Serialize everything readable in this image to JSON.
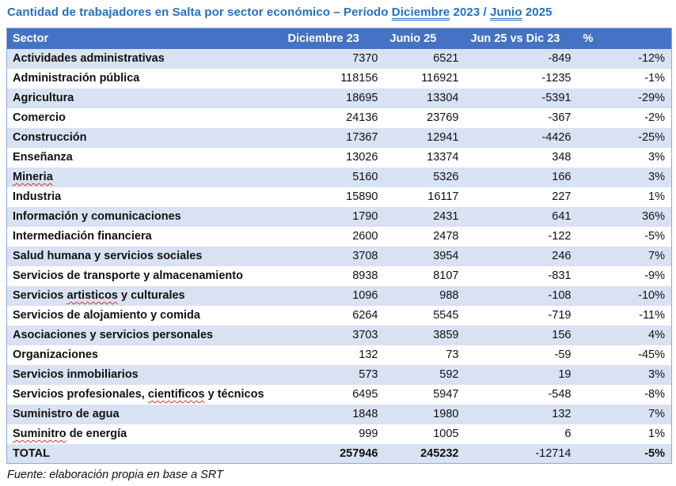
{
  "title": {
    "full": "Cantidad de trabajadores en Salta por sector económico – Período Diciembre 2023 / Junio 2025",
    "parts": [
      {
        "text": "Cantidad de trabajadores en Salta por sector económico – Período "
      },
      {
        "text": "Diciembre",
        "underline": true
      },
      {
        "text": " 2023 / "
      },
      {
        "text": "Junio",
        "underline": true
      },
      {
        "text": " 2025"
      }
    ]
  },
  "table": {
    "headers": {
      "sector": "Sector",
      "dic": "Diciembre 23",
      "jun": "Junio 25",
      "diff": "Jun 25 vs Dic 23",
      "pct": "%"
    },
    "rows": [
      {
        "sector": "Actividades administrativas",
        "dic": "7370",
        "jun": "6521",
        "diff": "-849",
        "pct": "-12%"
      },
      {
        "sector": "Administración pública",
        "dic": "118156",
        "jun": "116921",
        "diff": "-1235",
        "pct": "-1%"
      },
      {
        "sector": "Agricultura",
        "dic": "18695",
        "jun": "13304",
        "diff": "-5391",
        "pct": "-29%"
      },
      {
        "sector": "Comercio",
        "dic": "24136",
        "jun": "23769",
        "diff": "-367",
        "pct": "-2%"
      },
      {
        "sector": "Construcción",
        "dic": "17367",
        "jun": "12941",
        "diff": "-4426",
        "pct": "-25%"
      },
      {
        "sector": "Enseñanza",
        "dic": "13026",
        "jun": "13374",
        "diff": "348",
        "pct": "3%"
      },
      {
        "sector": "Mineria",
        "misspell": "Mineria",
        "dic": "5160",
        "jun": "5326",
        "diff": "166",
        "pct": "3%"
      },
      {
        "sector": "Industria",
        "dic": "15890",
        "jun": "16117",
        "diff": "227",
        "pct": "1%"
      },
      {
        "sector": "Información y comunicaciones",
        "dic": "1790",
        "jun": "2431",
        "diff": "641",
        "pct": "36%"
      },
      {
        "sector": "Intermediación financiera",
        "dic": "2600",
        "jun": "2478",
        "diff": "-122",
        "pct": "-5%"
      },
      {
        "sector": "Salud humana y servicios sociales",
        "dic": "3708",
        "jun": "3954",
        "diff": "246",
        "pct": "7%"
      },
      {
        "sector": "Servicios de transporte y almacenamiento",
        "dic": "8938",
        "jun": "8107",
        "diff": "-831",
        "pct": "-9%"
      },
      {
        "sector": "Servicios artisticos y culturales",
        "misspell": "artisticos",
        "dic": "1096",
        "jun": "988",
        "diff": "-108",
        "pct": "-10%"
      },
      {
        "sector": "Servicios de alojamiento y comida",
        "dic": "6264",
        "jun": "5545",
        "diff": "-719",
        "pct": "-11%"
      },
      {
        "sector": "Asociaciones y servicios personales",
        "dic": "3703",
        "jun": "3859",
        "diff": "156",
        "pct": "4%"
      },
      {
        "sector": "Organizaciones",
        "dic": "132",
        "jun": "73",
        "diff": "-59",
        "pct": "-45%"
      },
      {
        "sector": "Servicios inmobiliarios",
        "dic": "573",
        "jun": "592",
        "diff": "19",
        "pct": "3%"
      },
      {
        "sector": "Servicios profesionales, cientificos y técnicos",
        "misspell": "cientificos",
        "dic": "6495",
        "jun": "5947",
        "diff": "-548",
        "pct": "-8%"
      },
      {
        "sector": "Suministro de agua",
        "dic": "1848",
        "jun": "1980",
        "diff": "132",
        "pct": "7%"
      },
      {
        "sector": "Suminitro de energía",
        "misspell": "Suminitro",
        "dic": "999",
        "jun": "1005",
        "diff": "6",
        "pct": "1%"
      }
    ],
    "total": {
      "sector": "TOTAL",
      "dic": "257946",
      "jun": "245232",
      "diff": "-12714",
      "pct": "-5%"
    }
  },
  "footer": {
    "source": "Fuente: elaboración propia en base a SRT"
  },
  "colors": {
    "title_text": "#2272c3",
    "header_fill": "#4472c4",
    "header_text": "#ffffff",
    "band_fill": "#d9e2f3",
    "table_border": "#8eaadb",
    "misspell_underline": "#d13428"
  },
  "chart_data": {
    "type": "table",
    "title": "Cantidad de trabajadores en Salta por sector económico – Período Diciembre 2023 / Junio 2025",
    "columns": [
      "Sector",
      "Diciembre 23",
      "Junio 25",
      "Jun 25 vs Dic 23",
      "%"
    ],
    "rows": [
      [
        "Actividades administrativas",
        7370,
        6521,
        -849,
        -12
      ],
      [
        "Administración pública",
        118156,
        116921,
        -1235,
        -1
      ],
      [
        "Agricultura",
        18695,
        13304,
        -5391,
        -29
      ],
      [
        "Comercio",
        24136,
        23769,
        -367,
        -2
      ],
      [
        "Construcción",
        17367,
        12941,
        -4426,
        -25
      ],
      [
        "Enseñanza",
        13026,
        13374,
        348,
        3
      ],
      [
        "Mineria",
        5160,
        5326,
        166,
        3
      ],
      [
        "Industria",
        15890,
        16117,
        227,
        1
      ],
      [
        "Información y comunicaciones",
        1790,
        2431,
        641,
        36
      ],
      [
        "Intermediación financiera",
        2600,
        2478,
        -122,
        -5
      ],
      [
        "Salud humana y servicios sociales",
        3708,
        3954,
        246,
        7
      ],
      [
        "Servicios de transporte y almacenamiento",
        8938,
        8107,
        -831,
        -9
      ],
      [
        "Servicios artisticos y culturales",
        1096,
        988,
        -108,
        -10
      ],
      [
        "Servicios de alojamiento y comida",
        6264,
        5545,
        -719,
        -11
      ],
      [
        "Asociaciones y servicios personales",
        3703,
        3859,
        156,
        4
      ],
      [
        "Organizaciones",
        132,
        73,
        -59,
        -45
      ],
      [
        "Servicios inmobiliarios",
        573,
        592,
        19,
        3
      ],
      [
        "Servicios profesionales, cientificos y técnicos",
        6495,
        5947,
        -548,
        -8
      ],
      [
        "Suministro de agua",
        1848,
        1980,
        132,
        7
      ],
      [
        "Suminitro de energía",
        999,
        1005,
        6,
        1
      ],
      [
        "TOTAL",
        257946,
        245232,
        -12714,
        -5
      ]
    ],
    "source": "Fuente: elaboración propia en base a SRT"
  }
}
